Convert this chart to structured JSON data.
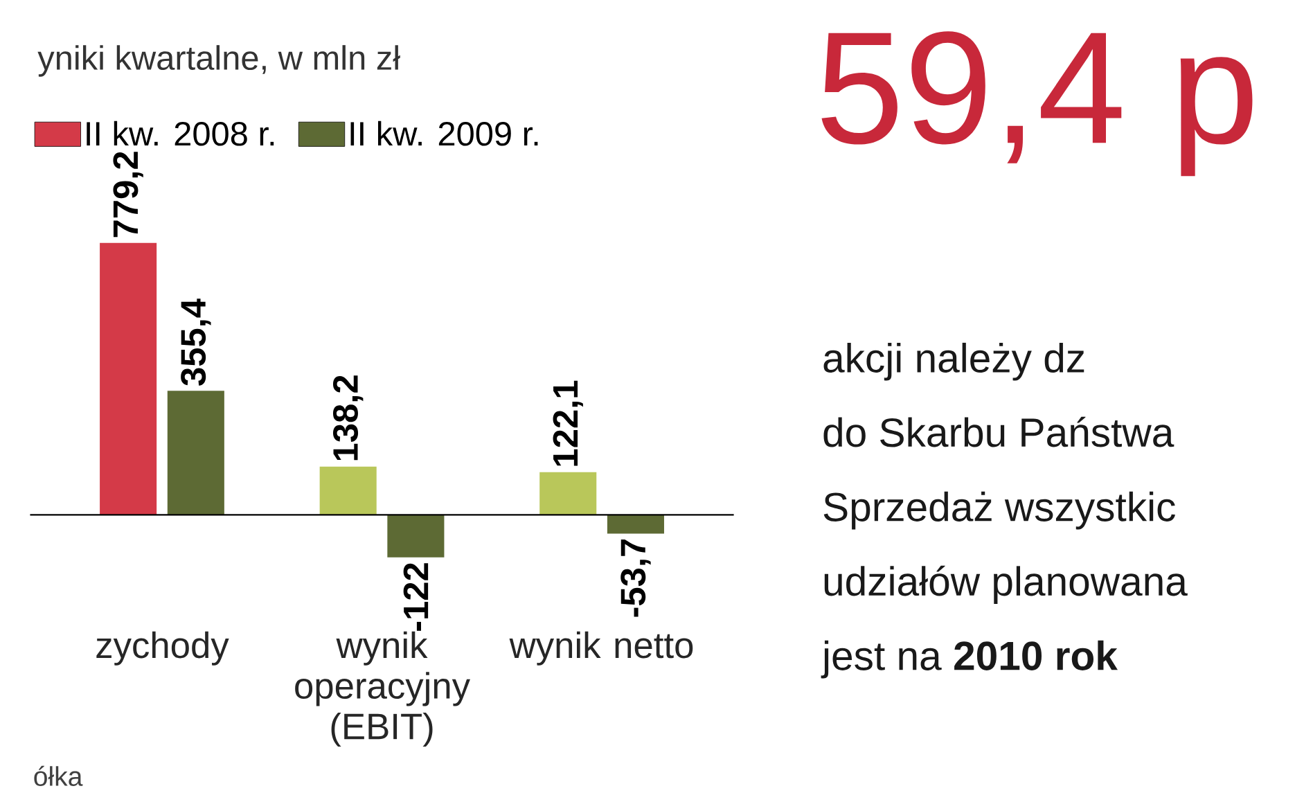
{
  "chart_data": {
    "type": "bar",
    "title": "yniki kwartalne, w mln zł",
    "categories": [
      "zychody",
      "wynik operacyjny (EBIT)",
      "wynik netto"
    ],
    "series": [
      {
        "name": "II kw. 2008 r.",
        "color": "#d43a48",
        "colors": [
          "#d43a48",
          "#b9c75a",
          "#b9c75a"
        ],
        "values": [
          779.2,
          138.2,
          122.1
        ],
        "value_labels": [
          "779,2",
          "138,2",
          "122,1"
        ]
      },
      {
        "name": "II kw. 2009 r.",
        "color": "#5d6a34",
        "values": [
          355.4,
          -122,
          -53.7
        ],
        "value_labels": [
          "355,4",
          "-122",
          "-53,7"
        ]
      }
    ],
    "legend": "top left",
    "annotations": [
      "59,4 p",
      "akcji należy dz",
      "do Skarbu Państwa",
      "Sprzedaż wszystkic",
      "udziałów planowana",
      "jest na **2010 rok**",
      "ółka"
    ]
  }
}
